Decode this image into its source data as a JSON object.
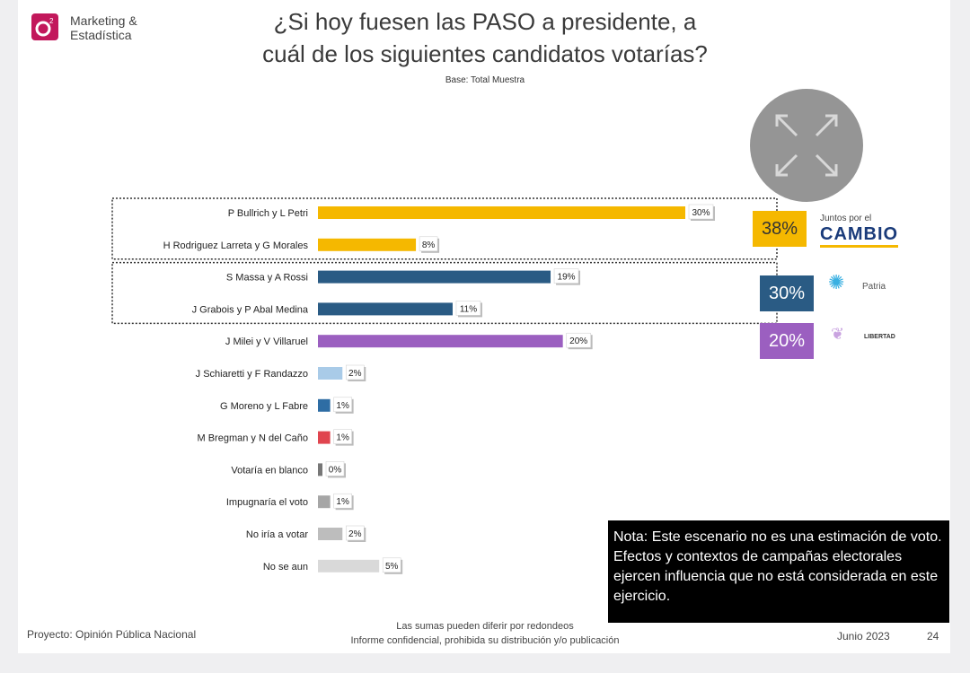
{
  "header": {
    "brand_line1": "Marketing &",
    "brand_line2": "Estadística",
    "title_line1": "¿Si hoy fuesen las PASO a presidente, a",
    "title_line2": "cuál de los siguientes candidatos votarías?",
    "subtitle": "Base: Total Muestra"
  },
  "chart_data": {
    "type": "bar",
    "orientation": "horizontal",
    "title": "¿Si hoy fuesen las PASO a presidente, a cuál de los siguientes candidatos votarías?",
    "categories": [
      "P Bullrich y L Petri",
      "H Rodriguez Larreta y G Morales",
      "S Massa y A Rossi",
      "J Grabois y P Abal Medina",
      "J Milei y V Villaruel",
      "J Schiaretti y F Randazzo",
      "G Moreno y L Fabre",
      "M Bregman y N del Caño",
      "Votaría en blanco",
      "Impugnaría el voto",
      "No iría a votar",
      "No se aun"
    ],
    "values": [
      30,
      8,
      19,
      11,
      20,
      2,
      1,
      1,
      0,
      1,
      2,
      5
    ],
    "value_labels": [
      "30%",
      "8%",
      "19%",
      "11%",
      "20%",
      "2%",
      "1%",
      "1%",
      "0%",
      "1%",
      "2%",
      "5%"
    ],
    "colors": [
      "#f5b800",
      "#f5b800",
      "#2a5b84",
      "#2a5b84",
      "#9b5fc0",
      "#a9cbe8",
      "#2e6da4",
      "#e0454f",
      "#777777",
      "#a6a6a6",
      "#bdbdbd",
      "#d9d9d9"
    ],
    "xlim": [
      0,
      30
    ],
    "groups": [
      {
        "members": [
          0,
          1
        ],
        "total_label": "38%",
        "party_tagline": "Juntos por el",
        "party_name": "CAMBIO",
        "color": "#f5b800"
      },
      {
        "members": [
          2,
          3
        ],
        "total_label": "30%",
        "party_name": "Patria",
        "color": "#2a5b84"
      },
      {
        "members": [
          4
        ],
        "total_label": "20%",
        "party_name": "LIBERTAD",
        "color": "#9b5fc0"
      }
    ]
  },
  "note": {
    "text": "Nota: Este escenario no es una estimación de voto. Efectos y contextos de campañas electorales ejercen influencia que no está considerada en este ejercicio."
  },
  "footer": {
    "project": "Proyecto: Opinión Pública Nacional",
    "center_line1": "Las sumas pueden diferir por redondeos",
    "center_line2": "Informe confidencial, prohibida su distribución y/o publicación",
    "date": "Junio 2023",
    "page": "24"
  }
}
